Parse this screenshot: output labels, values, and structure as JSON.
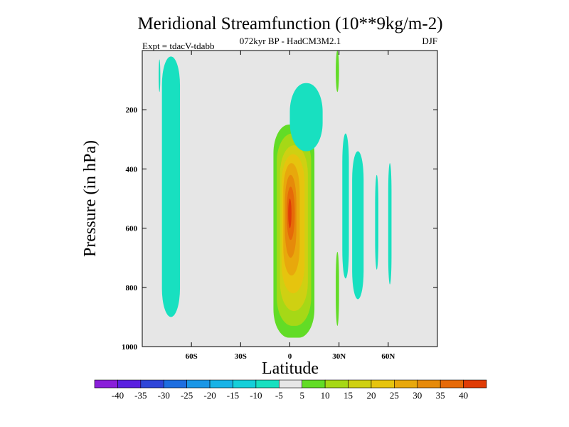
{
  "chart_data": {
    "type": "contour",
    "title": "Meridional Streamfunction (10**9kg/m-2)",
    "subtitle": "072kyr BP - HadCM3M2.1",
    "left_label": "Expt = tdacV-tdabb",
    "right_label": "DJF",
    "xlabel": "Latitude",
    "ylabel": "Pressure (in hPa)",
    "xlim": [
      -90,
      90
    ],
    "ylim": [
      1000,
      0
    ],
    "x_ticks": [
      {
        "value": -60,
        "label": "60S"
      },
      {
        "value": -30,
        "label": "30S"
      },
      {
        "value": 0,
        "label": "0"
      },
      {
        "value": 30,
        "label": "30N"
      },
      {
        "value": 60,
        "label": "60N"
      }
    ],
    "y_ticks": [
      {
        "value": 200,
        "label": "200"
      },
      {
        "value": 400,
        "label": "400"
      },
      {
        "value": 600,
        "label": "600"
      },
      {
        "value": 800,
        "label": "800"
      },
      {
        "value": 1000,
        "label": "1000"
      }
    ],
    "colorbar": {
      "colors": [
        "#8a1fd9",
        "#5a20e0",
        "#2f45d8",
        "#1e6ee0",
        "#1a96e6",
        "#18b3e6",
        "#15cfd9",
        "#18e0c0",
        "#e6e6e6",
        "#62dc26",
        "#a6d816",
        "#cfd012",
        "#e6c40e",
        "#e8a80c",
        "#e68a0a",
        "#e66a08",
        "#e03c06"
      ],
      "labels": [
        "-40",
        "-35",
        "-30",
        "-25",
        "-20",
        "-15",
        "-10",
        "-5",
        "5",
        "10",
        "15",
        "20",
        "25",
        "30",
        "35",
        "40"
      ]
    },
    "features": [
      {
        "name": "southern-negative-column",
        "value": -5,
        "lat": [
          -78,
          -67
        ],
        "p": [
          20,
          900
        ]
      },
      {
        "name": "southern-strip-a",
        "value": -5,
        "lat": [
          -80,
          -79
        ],
        "p": [
          30,
          140
        ]
      },
      {
        "name": "tropical-cell-5",
        "value": 5,
        "lat": [
          -10,
          15
        ],
        "p": [
          250,
          970
        ]
      },
      {
        "name": "tropical-cell-10",
        "value": 10,
        "lat": [
          -8,
          13
        ],
        "p": [
          280,
          930
        ]
      },
      {
        "name": "tropical-cell-15",
        "value": 15,
        "lat": [
          -6,
          11
        ],
        "p": [
          320,
          880
        ]
      },
      {
        "name": "tropical-cell-20",
        "value": 20,
        "lat": [
          -5,
          9
        ],
        "p": [
          350,
          820
        ]
      },
      {
        "name": "tropical-cell-25",
        "value": 25,
        "lat": [
          -4,
          6
        ],
        "p": [
          380,
          760
        ]
      },
      {
        "name": "tropical-cell-30",
        "value": 30,
        "lat": [
          -3,
          4
        ],
        "p": [
          420,
          700
        ]
      },
      {
        "name": "tropical-cell-35",
        "value": 35,
        "lat": [
          -2,
          3
        ],
        "p": [
          460,
          640
        ]
      },
      {
        "name": "tropical-cell-40",
        "value": 40,
        "lat": [
          -1,
          1
        ],
        "p": [
          500,
          600
        ]
      },
      {
        "name": "upper-negative-blob",
        "value": -5,
        "lat": [
          0,
          20
        ],
        "p": [
          110,
          340
        ]
      },
      {
        "name": "upper-negative-core",
        "value": -10,
        "lat": [
          8,
          15
        ],
        "p": [
          160,
          240
        ]
      },
      {
        "name": "north-positive-strip",
        "value": 5,
        "lat": [
          28,
          30
        ],
        "p": [
          0,
          140
        ]
      },
      {
        "name": "north-positive-lower",
        "value": 5,
        "lat": [
          28,
          30
        ],
        "p": [
          680,
          930
        ]
      },
      {
        "name": "north-negative-a",
        "value": -5,
        "lat": [
          32,
          36
        ],
        "p": [
          280,
          770
        ]
      },
      {
        "name": "north-negative-b",
        "value": -5,
        "lat": [
          38,
          45
        ],
        "p": [
          340,
          840
        ]
      },
      {
        "name": "north-negative-c",
        "value": -5,
        "lat": [
          52,
          54
        ],
        "p": [
          420,
          740
        ]
      },
      {
        "name": "north-negative-d",
        "value": -5,
        "lat": [
          60,
          62
        ],
        "p": [
          380,
          790
        ]
      }
    ]
  }
}
